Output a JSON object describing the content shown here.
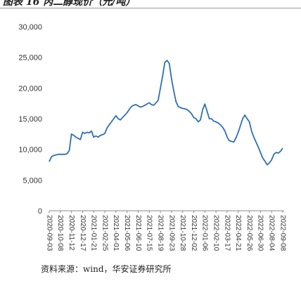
{
  "figure": {
    "caption": "图表 16 丙二醇现价（元/吨）",
    "source": "资料来源：wind，华安证券研究所"
  },
  "colors": {
    "line": "#2e6fb7",
    "axis": "#888888",
    "text": "#333333"
  },
  "chart_data": {
    "type": "line",
    "title": "",
    "xlabel": "",
    "ylabel": "",
    "ylim": [
      0,
      30000
    ],
    "yticks": [
      "30,000",
      "25,000",
      "20,000",
      "15,000",
      "10,000",
      "5,000",
      "0"
    ],
    "ytick_values": [
      30000,
      25000,
      20000,
      15000,
      10000,
      5000,
      0
    ],
    "grid": false,
    "legend": "none",
    "xticks": [
      "2020-09-03",
      "2020-10-08",
      "2020-11-12",
      "2020-12-17",
      "2021-01-21",
      "2021-02-25",
      "2021-04-01",
      "2021-05-06",
      "2021-06-10",
      "2021-07-15",
      "2021-08-19",
      "2021-09-23",
      "2021-10-28",
      "2021-12-02",
      "2022-01-06",
      "2022-02-10",
      "2022-03-17",
      "2022-04-21",
      "2022-05-26",
      "2022-06-30",
      "2022-08-04",
      "2022-09-08"
    ],
    "series": [
      {
        "name": "",
        "x": [
          "2020-09-03",
          "2020-09-10",
          "2020-09-17",
          "2020-09-24",
          "2020-10-01",
          "2020-10-08",
          "2020-10-15",
          "2020-10-22",
          "2020-10-29",
          "2020-11-05",
          "2020-11-12",
          "2020-11-19",
          "2020-11-26",
          "2020-12-03",
          "2020-12-10",
          "2020-12-17",
          "2020-12-24",
          "2020-12-31",
          "2021-01-07",
          "2021-01-14",
          "2021-01-21",
          "2021-01-28",
          "2021-02-04",
          "2021-02-11",
          "2021-02-18",
          "2021-02-25",
          "2021-03-04",
          "2021-03-11",
          "2021-03-18",
          "2021-03-25",
          "2021-04-01",
          "2021-04-08",
          "2021-04-15",
          "2021-04-22",
          "2021-04-29",
          "2021-05-06",
          "2021-05-13",
          "2021-05-20",
          "2021-05-27",
          "2021-06-03",
          "2021-06-10",
          "2021-06-17",
          "2021-06-24",
          "2021-07-01",
          "2021-07-08",
          "2021-07-15",
          "2021-07-22",
          "2021-07-29",
          "2021-08-05",
          "2021-08-12",
          "2021-08-19",
          "2021-08-26",
          "2021-09-02",
          "2021-09-09",
          "2021-09-16",
          "2021-09-23",
          "2021-09-30",
          "2021-10-07",
          "2021-10-14",
          "2021-10-21",
          "2021-10-28",
          "2021-11-04",
          "2021-11-11",
          "2021-11-18",
          "2021-11-25",
          "2021-12-02",
          "2021-12-09",
          "2021-12-16",
          "2021-12-23",
          "2021-12-30",
          "2022-01-06",
          "2022-01-13",
          "2022-01-20",
          "2022-01-27",
          "2022-02-03",
          "2022-02-10",
          "2022-02-17",
          "2022-02-24",
          "2022-03-03",
          "2022-03-10",
          "2022-03-17",
          "2022-03-24",
          "2022-03-31",
          "2022-04-07",
          "2022-04-14",
          "2022-04-21",
          "2022-04-28",
          "2022-05-05",
          "2022-05-12",
          "2022-05-19",
          "2022-05-26",
          "2022-06-02",
          "2022-06-09",
          "2022-06-16",
          "2022-06-23",
          "2022-06-30",
          "2022-07-07",
          "2022-07-14",
          "2022-07-21",
          "2022-07-28",
          "2022-08-04",
          "2022-08-11",
          "2022-08-18",
          "2022-08-25",
          "2022-09-01",
          "2022-09-08"
        ],
        "values": [
          8000,
          8800,
          9000,
          9100,
          9200,
          9200,
          9200,
          9200,
          9300,
          9800,
          12500,
          12300,
          12000,
          11800,
          11600,
          12800,
          12600,
          12800,
          12700,
          13000,
          12000,
          12200,
          12000,
          12300,
          12400,
          12600,
          13500,
          14000,
          14500,
          15000,
          15500,
          15000,
          14800,
          15200,
          15600,
          16000,
          16500,
          17000,
          17200,
          17300,
          17100,
          16900,
          17000,
          17200,
          17400,
          17600,
          17300,
          17200,
          17600,
          18000,
          20000,
          22000,
          24200,
          24500,
          24000,
          21500,
          19500,
          17800,
          17000,
          16800,
          16700,
          16600,
          16500,
          16200,
          15800,
          15200,
          15000,
          14500,
          14800,
          16500,
          17400,
          16200,
          15000,
          15000,
          14600,
          14500,
          14300,
          14000,
          13600,
          13000,
          12000,
          11400,
          11300,
          11200,
          11900,
          12800,
          13900,
          15000,
          15600,
          15000,
          14500,
          13000,
          12000,
          11200,
          10400,
          9500,
          8600,
          8100,
          7500,
          7800,
          8300,
          9200,
          9500,
          9400,
          9700,
          10200
        ]
      }
    ]
  }
}
